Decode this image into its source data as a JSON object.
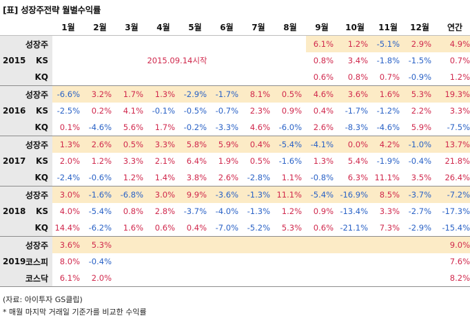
{
  "title": "[표] 성장주전략 월별수익률",
  "headers": [
    "1월",
    "2월",
    "3월",
    "4월",
    "5월",
    "6월",
    "7월",
    "8월",
    "9월",
    "10월",
    "11월",
    "12월",
    "연간"
  ],
  "note_2015": "2015.09.14시작",
  "source": "(자료: 아이투자 GS클립)",
  "footnote": "* 매월 마지막 거래일 기준가를 비교한 수익률",
  "years": [
    {
      "year": "2015",
      "rows": [
        {
          "label": "성장주",
          "values": [
            "",
            "",
            "",
            "",
            "",
            "",
            "",
            "",
            "6.1%",
            "1.2%",
            "-5.1%",
            "2.9%",
            "4.9%"
          ]
        },
        {
          "label": "KS",
          "values": [
            "",
            "",
            "",
            "",
            "",
            "",
            "",
            "",
            "0.8%",
            "3.4%",
            "-1.8%",
            "-1.5%",
            "0.7%"
          ]
        },
        {
          "label": "KQ",
          "values": [
            "",
            "",
            "",
            "",
            "",
            "",
            "",
            "",
            "0.6%",
            "0.8%",
            "0.7%",
            "-0.9%",
            "1.2%"
          ]
        }
      ]
    },
    {
      "year": "2016",
      "rows": [
        {
          "label": "성장주",
          "values": [
            "-6.6%",
            "3.2%",
            "1.7%",
            "1.3%",
            "-2.9%",
            "-1.7%",
            "8.1%",
            "0.5%",
            "4.6%",
            "3.6%",
            "1.6%",
            "5.3%",
            "19.3%"
          ]
        },
        {
          "label": "KS",
          "values": [
            "-2.5%",
            "0.2%",
            "4.1%",
            "-0.1%",
            "-0.5%",
            "-0.7%",
            "2.3%",
            "0.9%",
            "0.4%",
            "-1.7%",
            "-1.2%",
            "2.2%",
            "3.3%"
          ]
        },
        {
          "label": "KQ",
          "values": [
            "0.1%",
            "-4.6%",
            "5.6%",
            "1.7%",
            "-0.2%",
            "-3.3%",
            "4.6%",
            "-6.0%",
            "2.6%",
            "-8.3%",
            "-4.6%",
            "5.9%",
            "-7.5%"
          ]
        }
      ]
    },
    {
      "year": "2017",
      "rows": [
        {
          "label": "성장주",
          "values": [
            "1.3%",
            "2.6%",
            "0.5%",
            "3.3%",
            "5.8%",
            "5.9%",
            "0.4%",
            "-5.4%",
            "-4.1%",
            "0.0%",
            "4.2%",
            "-1.0%",
            "13.7%"
          ]
        },
        {
          "label": "KS",
          "values": [
            "2.0%",
            "1.2%",
            "3.3%",
            "2.1%",
            "6.4%",
            "1.9%",
            "0.5%",
            "-1.6%",
            "1.3%",
            "5.4%",
            "-1.9%",
            "-0.4%",
            "21.8%"
          ]
        },
        {
          "label": "KQ",
          "values": [
            "-2.4%",
            "-0.6%",
            "1.2%",
            "1.4%",
            "3.8%",
            "2.6%",
            "-2.8%",
            "1.1%",
            "-0.8%",
            "6.3%",
            "11.1%",
            "3.5%",
            "26.4%"
          ]
        }
      ]
    },
    {
      "year": "2018",
      "rows": [
        {
          "label": "성장주",
          "values": [
            "3.0%",
            "-1.6%",
            "-6.8%",
            "3.0%",
            "9.9%",
            "-3.6%",
            "-1.3%",
            "11.1%",
            "-5.4%",
            "-16.9%",
            "8.5%",
            "-3.7%",
            "-7.2%"
          ]
        },
        {
          "label": "KS",
          "values": [
            "4.0%",
            "-5.4%",
            "0.8%",
            "2.8%",
            "-3.7%",
            "-4.0%",
            "-1.3%",
            "1.2%",
            "0.9%",
            "-13.4%",
            "3.3%",
            "-2.7%",
            "-17.3%"
          ]
        },
        {
          "label": "KQ",
          "values": [
            "14.4%",
            "-6.2%",
            "1.6%",
            "0.6%",
            "0.4%",
            "-7.0%",
            "-5.2%",
            "5.3%",
            "0.6%",
            "-21.1%",
            "7.3%",
            "-2.9%",
            "-15.4%"
          ]
        }
      ]
    },
    {
      "year": "2019",
      "rows": [
        {
          "label": "성장주",
          "values": [
            "3.6%",
            "5.3%",
            "",
            "",
            "",
            "",
            "",
            "",
            "",
            "",
            "",
            "",
            "9.0%"
          ]
        },
        {
          "label": "코스피",
          "values": [
            "8.0%",
            "-0.4%",
            "",
            "",
            "",
            "",
            "",
            "",
            "",
            "",
            "",
            "",
            "7.6%"
          ]
        },
        {
          "label": "코스닥",
          "values": [
            "6.1%",
            "2.0%",
            "",
            "",
            "",
            "",
            "",
            "",
            "",
            "",
            "",
            "",
            "8.2%"
          ]
        }
      ]
    }
  ],
  "colors": {
    "positive": "#d0284c",
    "negative": "#2a62c6",
    "growth_row_bg": "#fcebc6",
    "label_bg": "#e9e9e9"
  }
}
